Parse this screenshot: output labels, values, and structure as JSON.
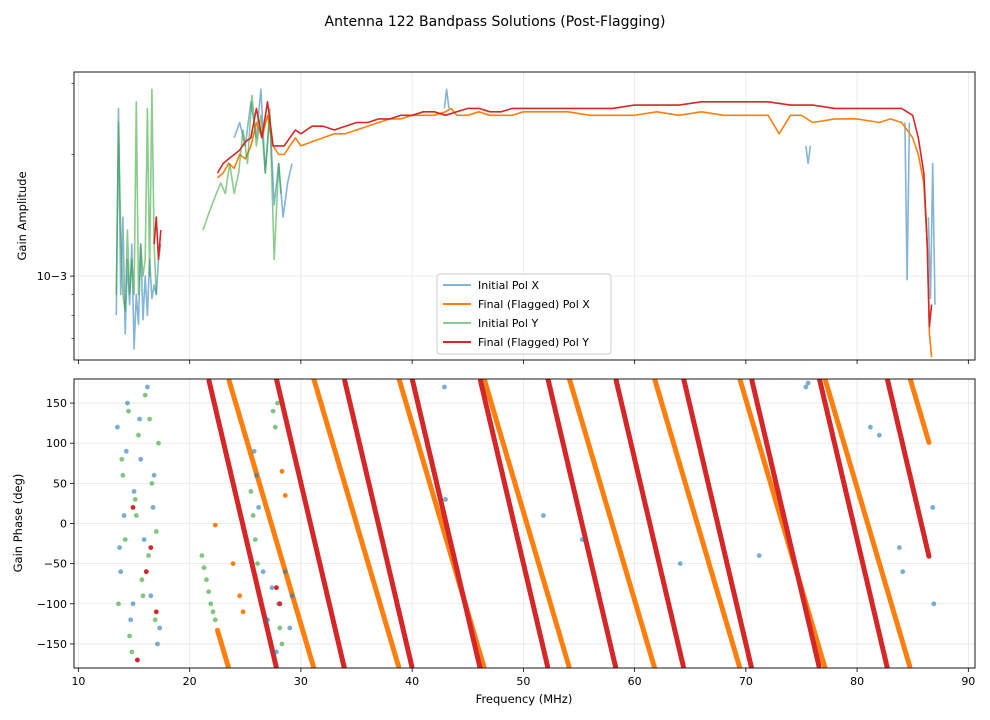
{
  "figure": {
    "title": "Antenna 122 Bandpass Solutions (Post-Flagging)"
  },
  "colors": {
    "initial_x": "#1f77b4",
    "final_x": "#ff7f0e",
    "initial_y": "#2ca02c",
    "final_y": "#d62728",
    "grid": "#e6e6e6"
  },
  "chart_data": [
    {
      "type": "line",
      "title": "",
      "xlabel": "",
      "ylabel": "Gain Amplitude",
      "xlim": [
        9.6,
        90.6
      ],
      "ylim": [
        0.00062,
        0.0032
      ],
      "yscale": "log",
      "grid": true,
      "legend_position": "lower-center",
      "y_ticks": [
        0.001
      ],
      "y_tick_labels": [
        "10−3"
      ],
      "legend": [
        "Initial Pol X",
        "Final (Flagged) Pol X",
        "Initial Pol Y",
        "Final (Flagged) Pol Y"
      ],
      "series": [
        {
          "name": "Initial Pol X",
          "x": [
            13.4,
            13.6,
            13.8,
            14.0,
            14.2,
            14.4,
            14.6,
            14.8,
            15.0,
            15.2,
            15.4,
            15.6,
            15.8,
            16.0,
            16.2,
            16.4,
            16.6,
            16.8,
            17.0,
            17.2,
            17.4,
            null,
            18.0,
            null,
            24.0,
            24.5,
            25.0,
            25.5,
            26.0,
            26.4,
            26.8,
            27.2,
            27.6,
            28.0,
            28.4,
            28.8,
            29.2,
            null,
            42.9,
            43.1,
            43.3,
            null,
            75.4,
            75.6,
            75.8,
            null,
            84.3,
            84.5,
            84.7,
            null,
            86.4,
            86.6,
            86.8,
            87.0
          ],
          "y": [
            0.0008,
            0.0026,
            0.0009,
            0.0014,
            0.00072,
            0.0011,
            0.00085,
            0.0012,
            0.00066,
            0.0009,
            0.00076,
            0.0012,
            0.00078,
            0.001,
            0.0008,
            0.0011,
            0.00088,
            0.00095,
            0.0009,
            0.0011,
            0.0012,
            null,
            0.0019,
            null,
            0.0022,
            0.0024,
            0.0021,
            0.0027,
            0.0022,
            0.0029,
            0.0018,
            0.0025,
            0.0015,
            0.0019,
            0.0014,
            0.0017,
            0.0019,
            null,
            0.0026,
            0.0029,
            0.0026,
            null,
            0.0021,
            0.0019,
            0.0021,
            null,
            0.0024,
            0.00098,
            0.0024,
            null,
            0.0014,
            0.00088,
            0.0019,
            0.00085
          ]
        },
        {
          "name": "Final (Flagged) Pol X",
          "x": [
            22.5,
            23,
            23.5,
            24,
            24.5,
            25,
            25.5,
            26,
            26.5,
            27,
            27.5,
            28,
            28.5,
            29,
            29.5,
            30,
            31,
            32,
            33,
            34,
            35,
            36,
            37,
            38,
            39,
            40,
            41,
            42,
            43,
            43.5,
            44,
            45,
            46,
            47,
            48,
            49,
            50,
            52,
            54,
            56,
            58,
            60,
            62,
            64,
            66,
            68,
            70,
            72,
            73,
            74,
            75,
            76,
            78,
            80,
            82,
            83,
            84,
            84.5,
            85,
            85.5,
            86,
            86.3,
            86.5,
            86.7
          ],
          "y": [
            0.00175,
            0.0018,
            0.0019,
            0.00185,
            0.002,
            0.00195,
            0.0021,
            0.0024,
            0.0022,
            0.0025,
            0.0021,
            0.002,
            0.002,
            0.0021,
            0.0022,
            0.0021,
            0.00215,
            0.0022,
            0.00225,
            0.00225,
            0.0023,
            0.00235,
            0.0024,
            0.00245,
            0.00245,
            0.0025,
            0.0025,
            0.0025,
            0.00255,
            0.0026,
            0.0025,
            0.0025,
            0.00255,
            0.0025,
            0.0025,
            0.0025,
            0.00255,
            0.00255,
            0.00255,
            0.0025,
            0.0025,
            0.0025,
            0.00255,
            0.0025,
            0.00255,
            0.0025,
            0.0025,
            0.0025,
            0.00225,
            0.0025,
            0.0025,
            0.0024,
            0.00245,
            0.00245,
            0.0024,
            0.00245,
            0.0024,
            0.0023,
            0.0022,
            0.002,
            0.0017,
            0.0012,
            0.00072,
            0.00063
          ]
        },
        {
          "name": "Initial Pol Y",
          "x": [
            13.4,
            13.6,
            13.8,
            14.0,
            14.2,
            14.4,
            14.6,
            14.8,
            15.0,
            15.2,
            15.4,
            15.6,
            15.8,
            16.0,
            16.2,
            16.4,
            16.6,
            16.8,
            17.0,
            null,
            18.0,
            null,
            21.2,
            21.6,
            22.0,
            22.4,
            22.8,
            23.2,
            23.6,
            24.0,
            24.4,
            24.8,
            25.2,
            25.6,
            26.0,
            26.4,
            26.8,
            27.2,
            27.6,
            28.0,
            28.2
          ],
          "y": [
            0.0009,
            0.0024,
            0.0013,
            0.0009,
            0.00082,
            0.0013,
            0.0009,
            0.0011,
            0.0009,
            0.0027,
            0.0009,
            0.0012,
            0.001,
            0.0011,
            0.0026,
            0.001,
            0.0029,
            0.0012,
            0.0009,
            null,
            0.0014,
            null,
            0.0013,
            0.0014,
            0.0015,
            0.0016,
            0.0017,
            0.0016,
            0.0019,
            0.0016,
            0.0018,
            0.0023,
            0.0019,
            0.0028,
            0.0021,
            0.0025,
            0.0018,
            0.0026,
            0.0011,
            0.0019,
            0.0016
          ]
        },
        {
          "name": "Final (Flagged) Pol Y",
          "x": [
            16.8,
            17.0,
            17.2,
            17.4,
            null,
            22.5,
            23,
            23.5,
            24,
            24.5,
            25,
            25.5,
            26,
            26.5,
            27,
            27.5,
            28,
            28.5,
            29,
            29.5,
            30,
            31,
            32,
            33,
            34,
            35,
            36,
            37,
            38,
            39,
            40,
            41,
            42,
            43,
            44,
            45,
            46,
            47,
            48,
            49,
            50,
            52,
            54,
            56,
            58,
            60,
            62,
            64,
            66,
            68,
            70,
            72,
            74,
            76,
            78,
            80,
            82,
            84,
            85,
            85.5,
            86,
            86.3,
            86.5,
            86.7
          ],
          "y": [
            0.0012,
            0.0014,
            0.0011,
            0.0013,
            null,
            0.0018,
            0.0019,
            0.00195,
            0.002,
            0.00205,
            0.00215,
            0.0022,
            0.0026,
            0.0022,
            0.0027,
            0.0021,
            0.0021,
            0.0021,
            0.0022,
            0.0023,
            0.00225,
            0.00235,
            0.00235,
            0.0023,
            0.00235,
            0.0024,
            0.0024,
            0.00245,
            0.00245,
            0.0025,
            0.0025,
            0.00255,
            0.00255,
            0.0025,
            0.00255,
            0.0026,
            0.0026,
            0.00255,
            0.00255,
            0.0026,
            0.0026,
            0.0026,
            0.0026,
            0.0026,
            0.0026,
            0.00265,
            0.00265,
            0.00265,
            0.0027,
            0.0027,
            0.0027,
            0.0027,
            0.00265,
            0.00265,
            0.0026,
            0.0026,
            0.0026,
            0.0026,
            0.0025,
            0.0022,
            0.0018,
            0.0012,
            0.00075,
            0.00085
          ]
        }
      ]
    },
    {
      "type": "scatter",
      "title": "",
      "xlabel": "Frequency (MHz)",
      "ylabel": "Gain Phase (deg)",
      "xlim": [
        9.6,
        90.6
      ],
      "ylim": [
        -180,
        180
      ],
      "grid": true,
      "x_ticks": [
        10,
        20,
        30,
        40,
        50,
        60,
        70,
        80,
        90
      ],
      "y_ticks": [
        -150,
        -100,
        -50,
        0,
        50,
        100,
        150
      ],
      "phase_wraps": {
        "Final (Flagged) Pol X": {
          "slope_deg_per_mhz": -47,
          "anchor_freq_mhz": 23.5,
          "anchor_phase_deg": 180,
          "freq_range_mhz": [
            22.5,
            86.5
          ]
        },
        "Final (Flagged) Pol Y": {
          "slope_deg_per_mhz": -59,
          "anchor_freq_mhz": 21.7,
          "anchor_phase_deg": 180,
          "freq_range_mhz": [
            21.7,
            86.5
          ]
        }
      },
      "series": [
        {
          "name": "Initial Pol X",
          "x": [
            13.5,
            13.8,
            14.1,
            14.4,
            14.7,
            15.0,
            15.3,
            15.6,
            15.9,
            16.2,
            16.5,
            16.8,
            17.1,
            13.7,
            14.3,
            14.9,
            15.5,
            16.1,
            16.7,
            17.3,
            25.8,
            26.0,
            26.2,
            26.6,
            27.0,
            27.4,
            27.8,
            28.0,
            28.6,
            29.0,
            29.2,
            42.9,
            43.0,
            51.8,
            55.3,
            64.1,
            71.2,
            75.4,
            75.6,
            81.2,
            82.0,
            83.8,
            84.1,
            86.8,
            86.9
          ],
          "y": [
            120,
            -60,
            10,
            150,
            -120,
            40,
            -170,
            80,
            -20,
            170,
            -90,
            60,
            -150,
            -30,
            90,
            -100,
            130,
            -60,
            20,
            -130,
            90,
            60,
            20,
            -60,
            -120,
            -80,
            -160,
            -100,
            -60,
            -130,
            -90,
            170,
            30,
            10,
            -20,
            -50,
            -40,
            170,
            175,
            120,
            110,
            -30,
            -60,
            20,
            -100
          ]
        },
        {
          "name": "Initial Pol Y",
          "x": [
            13.6,
            13.9,
            14.2,
            14.5,
            14.8,
            15.1,
            15.4,
            15.7,
            16.0,
            16.3,
            16.6,
            16.9,
            17.2,
            14.0,
            14.6,
            15.2,
            15.8,
            16.4,
            17.0,
            21.1,
            21.3,
            21.5,
            21.7,
            21.9,
            22.1,
            22.3,
            25.5,
            25.7,
            25.9,
            26.1,
            27.5,
            27.7,
            27.9,
            28.1,
            28.3
          ],
          "y": [
            -100,
            80,
            -20,
            140,
            -160,
            30,
            110,
            -70,
            160,
            -40,
            50,
            -120,
            100,
            60,
            -140,
            10,
            -90,
            130,
            -10,
            -40,
            -55,
            -70,
            -85,
            -100,
            -110,
            -120,
            40,
            10,
            -20,
            -50,
            140,
            120,
            150,
            -130,
            -150
          ]
        },
        {
          "name": "Final (Flagged) Pol X",
          "x": [
            22.3,
            23.9,
            24.5,
            24.8,
            28.3,
            28.6
          ],
          "y": [
            -2,
            -50,
            -90,
            -110,
            65,
            35
          ]
        },
        {
          "name": "Final (Flagged) Pol Y",
          "x": [
            14.9,
            15.3,
            16.1,
            16.5,
            17.0,
            27.8,
            28.1
          ],
          "y": [
            20,
            -170,
            -60,
            -30,
            -110,
            -80,
            -100
          ]
        }
      ]
    }
  ]
}
